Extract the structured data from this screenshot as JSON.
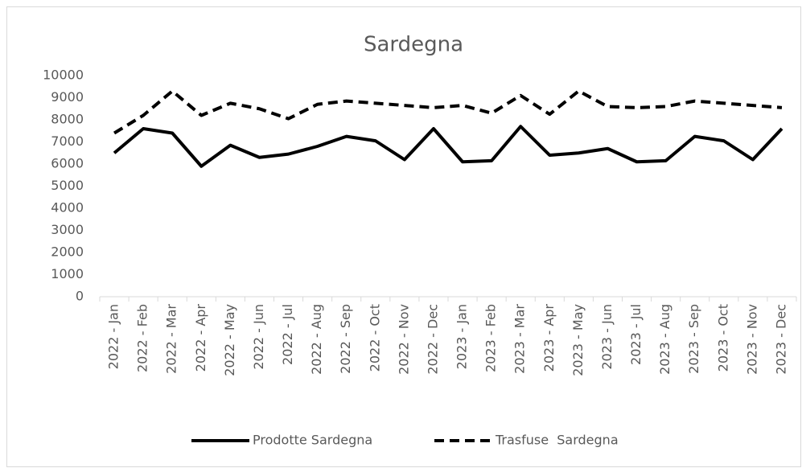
{
  "chart_data": {
    "type": "line",
    "title": "Sardegna",
    "categories": [
      "2022 - Jan",
      "2022 - Feb",
      "2022 - Mar",
      "2022 - Apr",
      "2022 - May",
      "2022 - Jun",
      "2022 - Jul",
      "2022 - Aug",
      "2022 - Sep",
      "2022 - Oct",
      "2022 - Nov",
      "2022 - Dec",
      "2023 - Jan",
      "2023 - Feb",
      "2023 - Mar",
      "2023 - Apr",
      "2023 - May",
      "2023 - Jun",
      "2023 - Jul",
      "2023 - Aug",
      "2023 - Sep",
      "2023 - Oct",
      "2023 - Nov",
      "2023 - Dec"
    ],
    "series": [
      {
        "name": "Prodotte Sardegna",
        "color": "#000000",
        "dash": "solid",
        "values": [
          6500,
          7600,
          7400,
          5900,
          6850,
          6300,
          6450,
          6800,
          7250,
          7050,
          6200,
          7600,
          6100,
          6150,
          7700,
          6400,
          6500,
          6700,
          6100,
          6150,
          7250,
          7050,
          6200,
          7600
        ]
      },
      {
        "name": "Trasfuse  Sardegna",
        "color": "#000000",
        "dash": "dashed",
        "values": [
          7400,
          8200,
          9300,
          8200,
          8750,
          8500,
          8050,
          8700,
          8850,
          8750,
          8650,
          8550,
          8650,
          8300,
          9100,
          8250,
          9300,
          8600,
          8550,
          8600,
          8850,
          8750,
          8650,
          8550
        ]
      }
    ],
    "ylim": [
      0,
      10000
    ],
    "yticks": [
      0,
      1000,
      2000,
      3000,
      4000,
      5000,
      6000,
      7000,
      8000,
      9000,
      10000
    ],
    "grid": false,
    "legend": "bottom"
  }
}
